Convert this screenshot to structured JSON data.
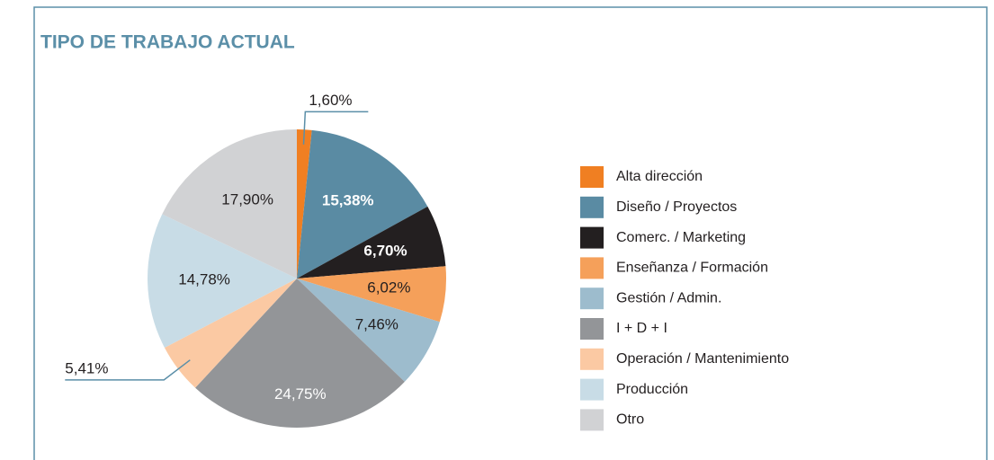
{
  "chart_data": {
    "type": "pie",
    "title": "TIPO DE TRABAJO ACTUAL",
    "categories": [
      "Alta dirección",
      "Diseño / Proyectos",
      "Comerc. / Marketing",
      "Enseñanza / Formación",
      "Gestión / Admin.",
      "I + D + I",
      "Operación / Mantenimiento",
      "Producción",
      "Otro"
    ],
    "values": [
      1.6,
      15.38,
      6.7,
      6.02,
      7.46,
      24.75,
      5.41,
      14.78,
      17.9
    ],
    "value_labels": [
      "1,60%",
      "15,38%",
      "6,70%",
      "6,02%",
      "7,46%",
      "24,75%",
      "5,41%",
      "14,78%",
      "17,90%"
    ],
    "colors": [
      "#f07f22",
      "#5a8ba3",
      "#231f20",
      "#f5a05a",
      "#9dbccd",
      "#939598",
      "#fbc9a3",
      "#c8dce6",
      "#d1d2d4"
    ],
    "legend": "right"
  }
}
